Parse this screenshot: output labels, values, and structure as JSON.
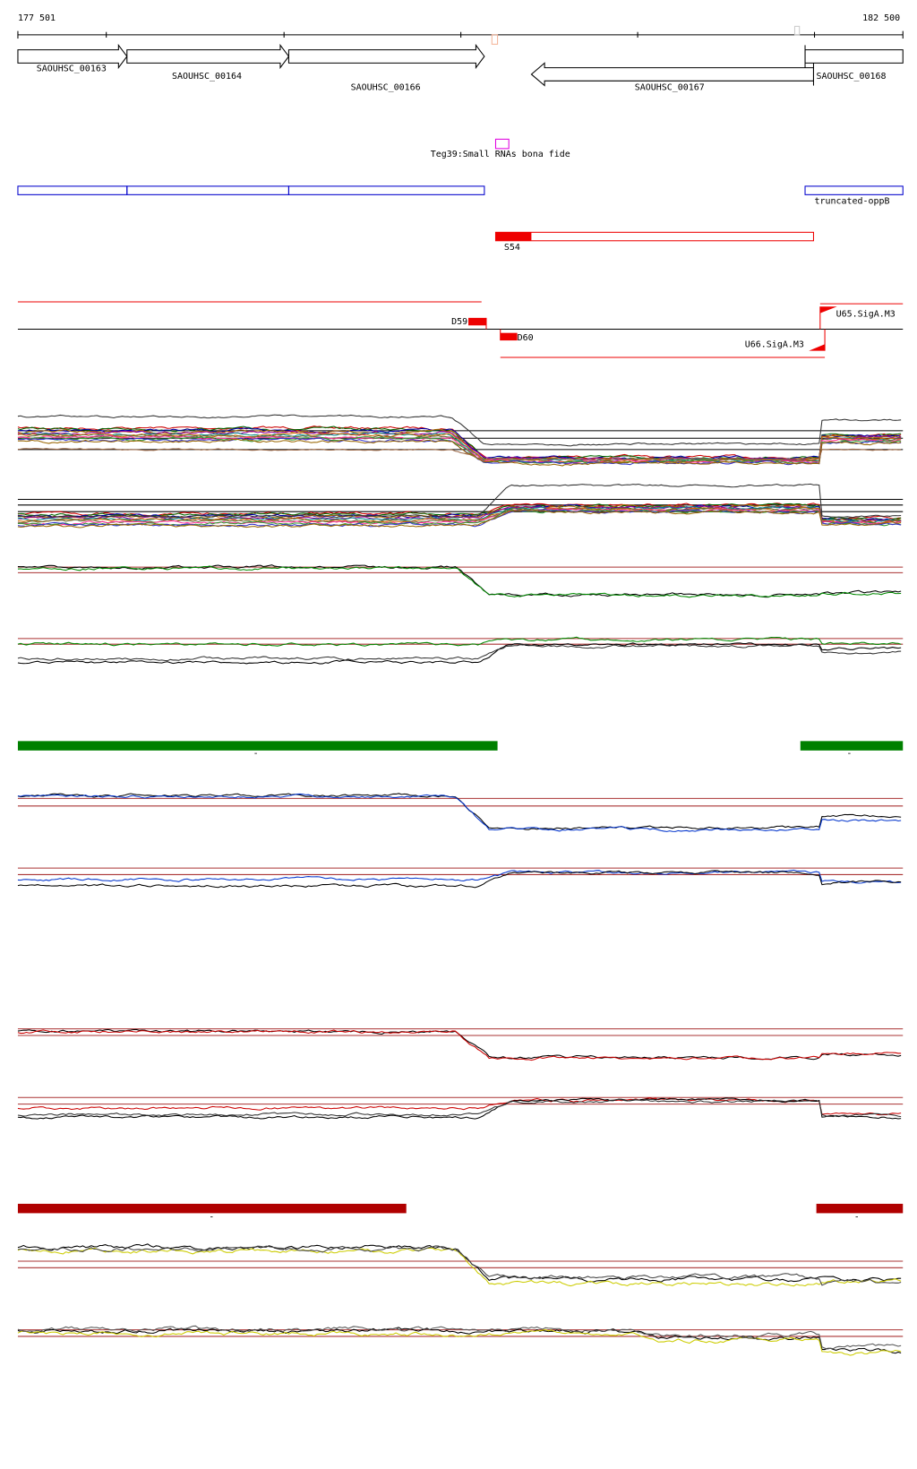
{
  "ruler": {
    "start": "177 501",
    "end": "182 500"
  },
  "genes": [
    {
      "label": "SAOUHSC_00163"
    },
    {
      "label": "SAOUHSC_00164"
    },
    {
      "label": "SAOUHSC_00166"
    },
    {
      "label": "SAOUHSC_00167"
    },
    {
      "label": "SAOUHSC_00168"
    }
  ],
  "srna": {
    "label": "Teg39:Small RNAs bona fide"
  },
  "operon": {
    "label": "truncated-oppB"
  },
  "segment": {
    "label": "S54"
  },
  "tss": [
    {
      "label": "D59"
    },
    {
      "label": "D60"
    },
    {
      "label": "U66.SigA.M3"
    },
    {
      "label": "U65.SigA.M3"
    }
  ],
  "tracks": {
    "green": [
      "-",
      "-"
    ],
    "red": [
      "-",
      "-"
    ]
  }
}
